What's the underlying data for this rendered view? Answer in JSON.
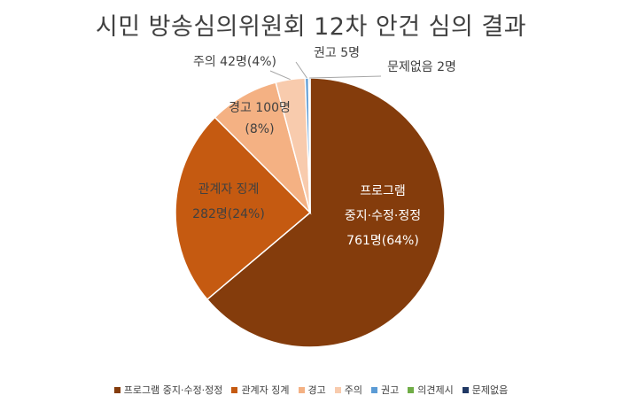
{
  "chart_data": {
    "type": "pie",
    "title": "시민 방송심의위원회 12차 안건 심의 결과",
    "legend_position": "bottom",
    "slices": [
      {
        "name": "프로그램 중지·수정·정정",
        "value": 761,
        "percent": 64,
        "color": "#843c0c",
        "label_lines": [
          "프로그램",
          "중지·수정·정정",
          "761명(64%)"
        ]
      },
      {
        "name": "관계자 징계",
        "value": 282,
        "percent": 24,
        "color": "#c55a11",
        "label_lines": [
          "관계자 징계",
          "282명(24%)"
        ]
      },
      {
        "name": "경고",
        "value": 100,
        "percent": 8,
        "color": "#f4b183",
        "label_lines": [
          "경고 100명",
          "(8%)"
        ]
      },
      {
        "name": "주의",
        "value": 42,
        "percent": 4,
        "color": "#f8cbad",
        "label_lines": [
          "주의 42명(4%)"
        ]
      },
      {
        "name": "권고",
        "value": 5,
        "percent": null,
        "color": "#5b9bd5",
        "label_lines": [
          "권고 5명"
        ]
      },
      {
        "name": "의견제시",
        "value": 0,
        "percent": null,
        "color": "#70ad47",
        "label_lines": []
      },
      {
        "name": "문제없음",
        "value": 2,
        "percent": null,
        "color": "#203864",
        "label_lines": [
          "문제없음 2명"
        ]
      }
    ]
  }
}
